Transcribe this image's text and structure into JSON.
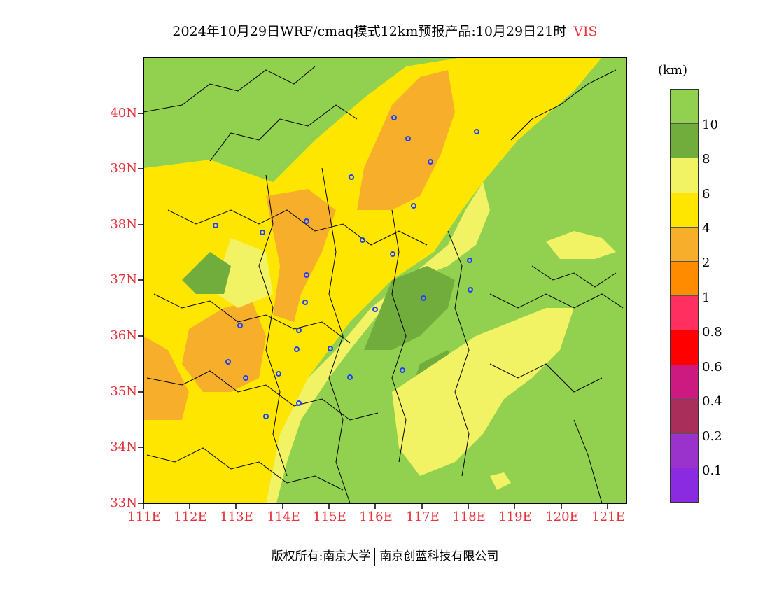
{
  "title": {
    "text": "2024年10月29日WRF/cmaq模式12km预报产品:10月29日21时",
    "variable": "VIS"
  },
  "map": {
    "lat_ticks": [
      "40N",
      "39N",
      "38N",
      "37N",
      "36N",
      "35N",
      "34N",
      "33N"
    ],
    "lon_ticks": [
      "111E",
      "112E",
      "113E",
      "114E",
      "115E",
      "116E",
      "117E",
      "118E",
      "119E",
      "120E",
      "121E"
    ]
  },
  "colorbar": {
    "unit": "(km)",
    "colors": [
      "#92d050",
      "#70ad3c",
      "#f2f265",
      "#ffe600",
      "#f7ae2a",
      "#ff8c00",
      "#ff3060",
      "#ff0000",
      "#cc1a80",
      "#a92f5a",
      "#9933cc",
      "#8a2be2"
    ],
    "labels": [
      "10",
      "8",
      "6",
      "4",
      "2",
      "1",
      "0.8",
      "0.6",
      "0.4",
      "0.2",
      "0.1"
    ]
  },
  "footer": {
    "left": "版权所有:南京大学",
    "right": "南京创蓝科技有限公司"
  }
}
